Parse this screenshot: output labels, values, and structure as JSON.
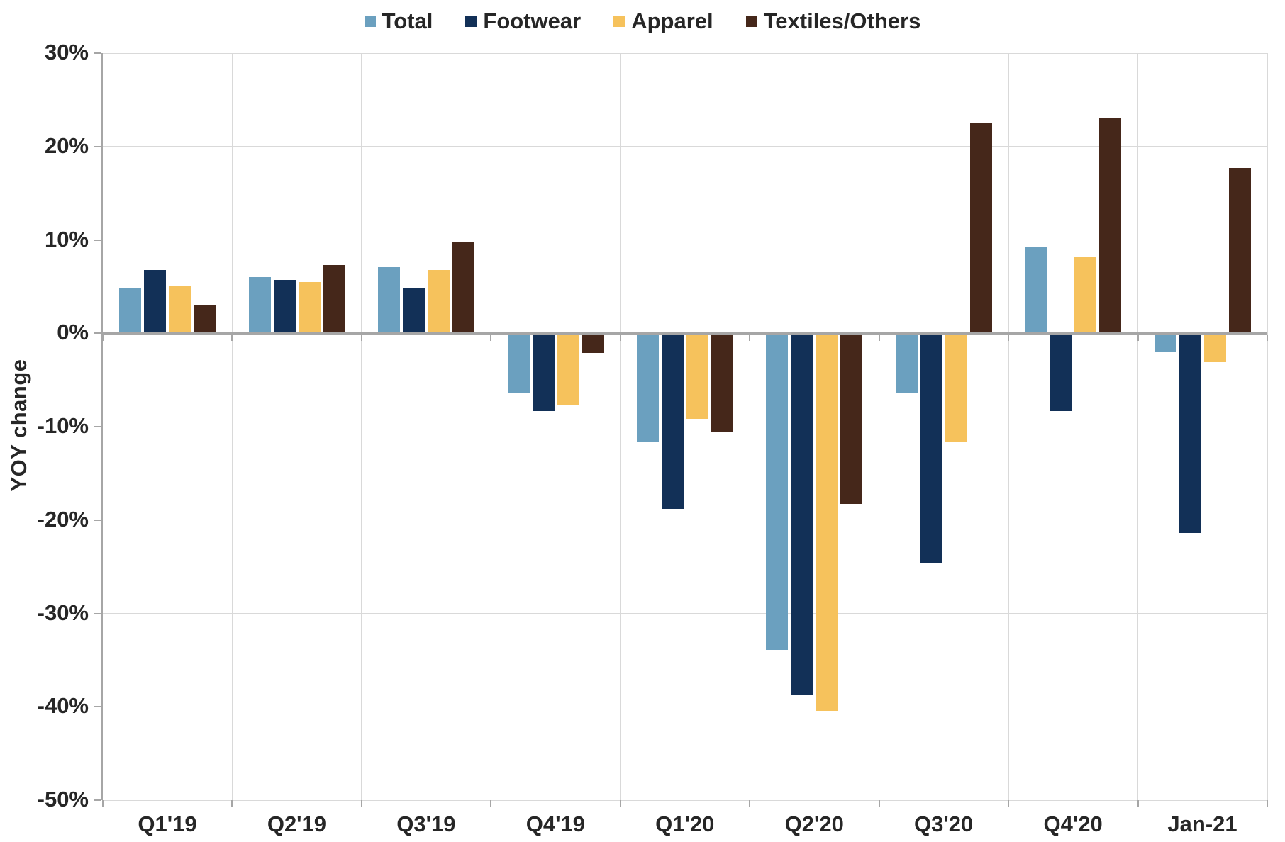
{
  "chart_data": {
    "type": "bar",
    "title": "",
    "xlabel": "",
    "ylabel": "YOY change",
    "ylim": [
      -50,
      30
    ],
    "ytick_step": 10,
    "ytick_labels": [
      "30%",
      "20%",
      "10%",
      "0%",
      "-10%",
      "-20%",
      "-30%",
      "-40%",
      "-50%"
    ],
    "grid": true,
    "legend_position": "top",
    "categories": [
      "Q1'19",
      "Q2'19",
      "Q3'19",
      "Q4'19",
      "Q1'20",
      "Q2'20",
      "Q3'20",
      "Q4'20",
      "Jan-21"
    ],
    "series": [
      {
        "name": "Total",
        "color": "#6BA0BF",
        "values": [
          4.9,
          6.0,
          7.1,
          -6.4,
          -11.7,
          -33.9,
          -6.4,
          9.2,
          -2.0
        ]
      },
      {
        "name": "Footwear",
        "color": "#123057",
        "values": [
          6.8,
          5.7,
          4.9,
          -8.3,
          -18.8,
          -38.8,
          -24.6,
          -8.3,
          -21.4
        ]
      },
      {
        "name": "Apparel",
        "color": "#F6C25C",
        "values": [
          5.1,
          5.5,
          6.8,
          -7.7,
          -9.2,
          -40.4,
          -11.7,
          8.2,
          -3.1
        ]
      },
      {
        "name": "Textiles/Others",
        "color": "#45271A",
        "values": [
          3.0,
          7.3,
          9.8,
          -2.1,
          -10.5,
          -18.3,
          22.5,
          23.0,
          17.7
        ]
      }
    ],
    "colors": {
      "gridline": "#D9D9D9",
      "axis": "#A6A6A6",
      "text": "#262626",
      "background": "#FFFFFF"
    }
  }
}
